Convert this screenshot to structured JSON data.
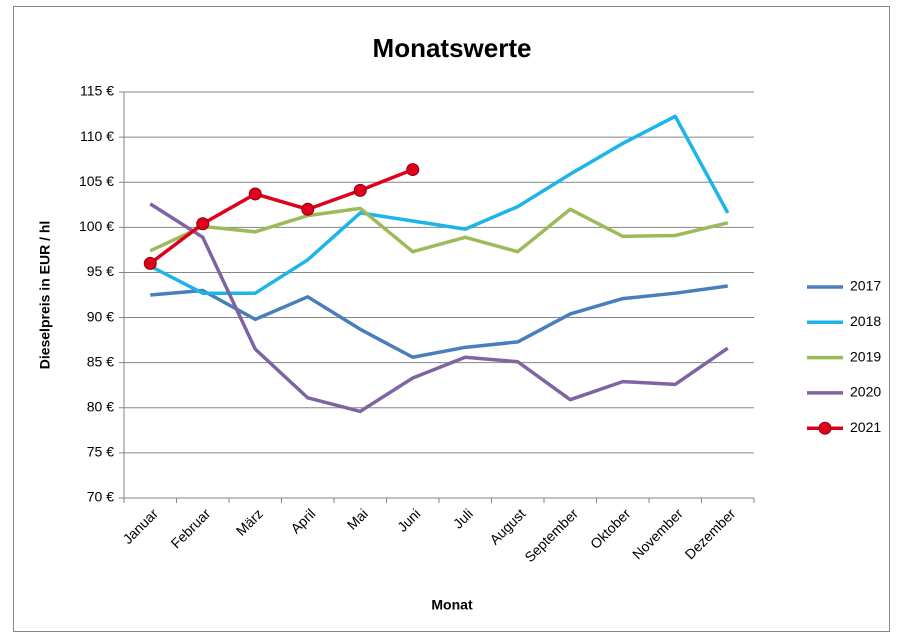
{
  "chart_data": {
    "type": "line",
    "title": "Monatswerte",
    "xlabel": "Monat",
    "ylabel": "Dieselpreis in EUR / hl",
    "categories": [
      "Januar",
      "Februar",
      "März",
      "April",
      "Mai",
      "Juni",
      "Juli",
      "August",
      "September",
      "Oktober",
      "November",
      "Dezember"
    ],
    "series": [
      {
        "name": "2017",
        "color": "#4a7ebb",
        "values": [
          92.5,
          93.0,
          89.8,
          92.3,
          88.7,
          85.6,
          86.7,
          87.3,
          90.4,
          92.1,
          92.7,
          93.5
        ]
      },
      {
        "name": "2018",
        "color": "#1cb4ea",
        "values": [
          95.7,
          92.7,
          92.7,
          96.4,
          101.6,
          100.7,
          99.8,
          102.3,
          105.9,
          109.3,
          112.3,
          101.6
        ]
      },
      {
        "name": "2019",
        "color": "#9bbb59",
        "values": [
          97.4,
          100.1,
          99.5,
          101.3,
          102.1,
          97.3,
          98.9,
          97.3,
          102.0,
          99.0,
          99.1,
          100.5
        ]
      },
      {
        "name": "2020",
        "color": "#8064a2",
        "values": [
          102.6,
          98.9,
          86.5,
          81.1,
          79.6,
          83.3,
          85.6,
          85.1,
          80.9,
          82.9,
          82.6,
          86.6
        ]
      },
      {
        "name": "2021",
        "color": "#e0001b",
        "marker": true,
        "values": [
          96.0,
          100.4,
          103.7,
          102.0,
          104.1,
          106.4,
          null,
          null,
          null,
          null,
          null,
          null
        ]
      }
    ],
    "ylim": [
      70,
      115
    ],
    "yticks": [
      {
        "value": 70,
        "label": "70 €"
      },
      {
        "value": 75,
        "label": "75 €"
      },
      {
        "value": 80,
        "label": "80 €"
      },
      {
        "value": 85,
        "label": "85 €"
      },
      {
        "value": 90,
        "label": "90 €"
      },
      {
        "value": 95,
        "label": "95 €"
      },
      {
        "value": 100,
        "label": "100 €"
      },
      {
        "value": 105,
        "label": "105 €"
      },
      {
        "value": 110,
        "label": "110 €"
      },
      {
        "value": 115,
        "label": "115 €"
      }
    ],
    "grid": true,
    "legend": "right"
  }
}
